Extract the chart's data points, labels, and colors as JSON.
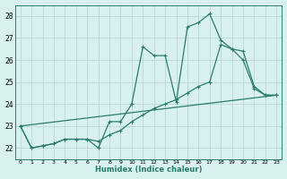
{
  "xlabel": "Humidex (Indice chaleur)",
  "xlim": [
    -0.5,
    23.5
  ],
  "ylim": [
    21.5,
    28.5
  ],
  "ytick_values": [
    22,
    23,
    24,
    25,
    26,
    27,
    28
  ],
  "bg_color": "#d8f0ee",
  "grid_color": "#b8d8d4",
  "line_color": "#2a7d6e",
  "line1_x": [
    0,
    1,
    2,
    3,
    4,
    5,
    6,
    7,
    8,
    9,
    10,
    11,
    12,
    13,
    14,
    15,
    16,
    17,
    18,
    19,
    20,
    21,
    22,
    23
  ],
  "line1_y": [
    23.0,
    22.0,
    22.1,
    22.2,
    22.4,
    22.4,
    22.4,
    22.0,
    23.2,
    23.2,
    24.0,
    26.6,
    26.2,
    26.2,
    24.1,
    27.5,
    27.7,
    28.1,
    26.9,
    26.5,
    26.0,
    24.7,
    24.4,
    24.4
  ],
  "line2_x": [
    0,
    1,
    2,
    3,
    4,
    5,
    6,
    7,
    8,
    9,
    10,
    11,
    12,
    13,
    14,
    15,
    16,
    17,
    18,
    19,
    20,
    21,
    22,
    23
  ],
  "line2_y": [
    23.0,
    22.0,
    22.1,
    22.2,
    22.4,
    22.4,
    22.4,
    22.3,
    22.6,
    22.8,
    23.2,
    23.5,
    23.8,
    24.0,
    24.2,
    24.5,
    24.8,
    25.0,
    26.7,
    26.5,
    26.4,
    24.8,
    24.4,
    24.4
  ],
  "line3_x": [
    0,
    23
  ],
  "line3_y": [
    23.0,
    24.4
  ]
}
